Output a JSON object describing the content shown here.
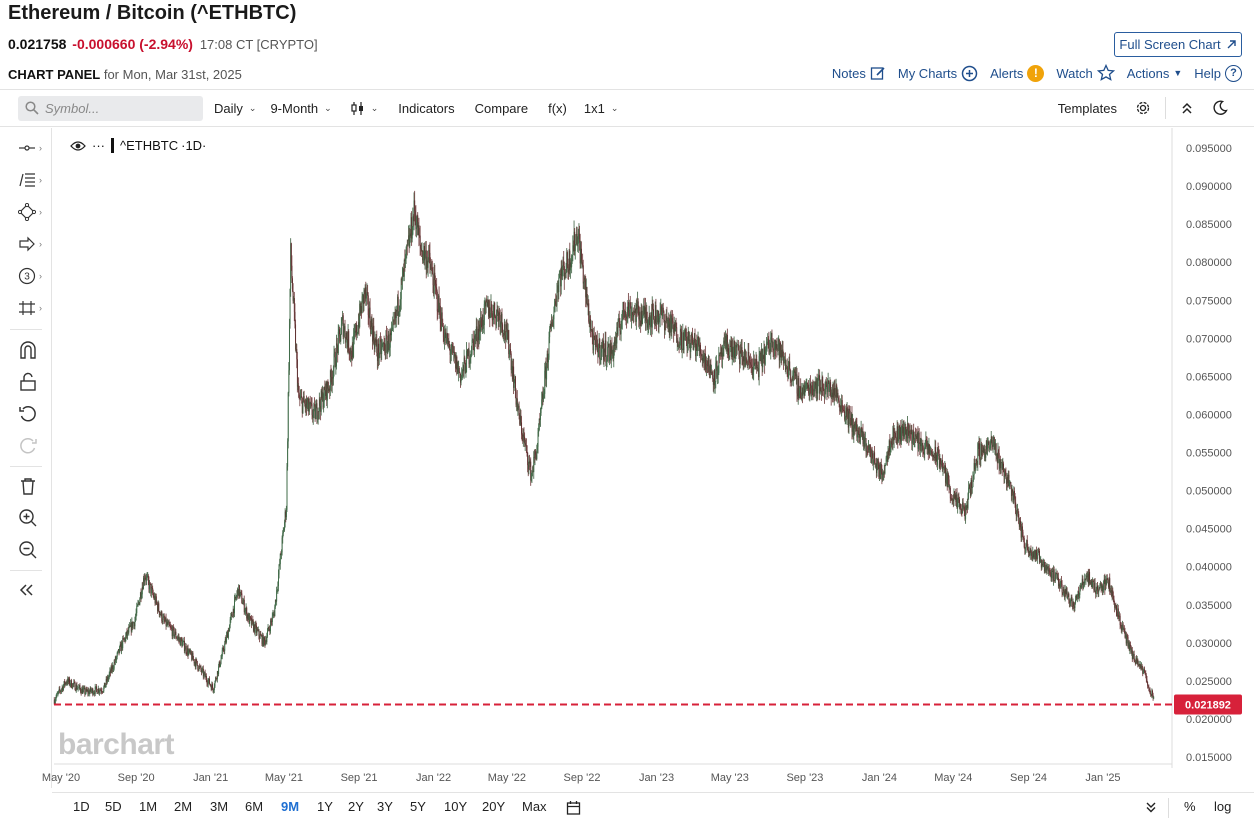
{
  "header": {
    "title": "Ethereum / Bitcoin (^ETHBTC)",
    "last": "0.021758",
    "change": "-0.000660 (-2.94%)",
    "meta": "17:08 CT [CRYPTO]",
    "fullscreen_label": "Full Screen Chart",
    "panel_title": "CHART PANEL",
    "panel_date": "for Mon, Mar 31st, 2025"
  },
  "links": {
    "notes": "Notes",
    "mycharts": "My Charts",
    "alerts": "Alerts",
    "watch": "Watch",
    "actions": "Actions",
    "help": "Help"
  },
  "toolbar": {
    "symbol_placeholder": "Symbol...",
    "interval": "Daily",
    "period": "9-Month",
    "indicators": "Indicators",
    "compare": "Compare",
    "fx": "f(x)",
    "layout": "1x1",
    "templates": "Templates"
  },
  "legend": {
    "symbol": "^ETHBTC",
    "interval": "·1D·"
  },
  "watermark": "barchart",
  "price_tag": "0.021892",
  "ranges": [
    "1D",
    "5D",
    "1M",
    "2M",
    "3M",
    "6M",
    "9M",
    "1Y",
    "2Y",
    "3Y",
    "5Y",
    "10Y",
    "20Y",
    "Max"
  ],
  "active_range": "9M",
  "bottom_right": {
    "percent": "%",
    "log": "log"
  },
  "colors": {
    "accent": "#1f4e8c",
    "down": "#c8102e",
    "price_line": "#d7213a",
    "candle": "#333333"
  },
  "chart_data": {
    "type": "line",
    "symbol": "^ETHBTC",
    "interval": "1D",
    "ylim": [
      0.0145,
      0.097
    ],
    "yticks": [
      "0.095000",
      "0.090000",
      "0.085000",
      "0.080000",
      "0.075000",
      "0.070000",
      "0.065000",
      "0.060000",
      "0.055000",
      "0.050000",
      "0.045000",
      "0.040000",
      "0.035000",
      "0.030000",
      "0.025000",
      "0.020000",
      "0.015000"
    ],
    "xticks": [
      "May '20",
      "Sep '20",
      "Jan '21",
      "May '21",
      "Sep '21",
      "Jan '22",
      "May '22",
      "Sep '22",
      "Jan '23",
      "May '23",
      "Sep '23",
      "Jan '24",
      "May '24",
      "Sep '24",
      "Jan '25"
    ],
    "x": [
      "2020-04-20",
      "2020-05-10",
      "2020-06-10",
      "2020-07-10",
      "2020-08-10",
      "2020-08-30",
      "2020-09-15",
      "2020-10-15",
      "2020-11-15",
      "2020-12-15",
      "2021-01-05",
      "2021-01-25",
      "2021-02-15",
      "2021-03-05",
      "2021-03-30",
      "2021-04-15",
      "2021-05-05",
      "2021-05-12",
      "2021-05-25",
      "2021-06-20",
      "2021-07-15",
      "2021-08-05",
      "2021-08-20",
      "2021-09-10",
      "2021-10-01",
      "2021-10-25",
      "2021-11-10",
      "2021-12-01",
      "2021-12-10",
      "2021-12-25",
      "2022-01-20",
      "2022-02-15",
      "2022-03-05",
      "2022-03-30",
      "2022-04-20",
      "2022-05-05",
      "2022-05-20",
      "2022-06-10",
      "2022-06-20",
      "2022-07-10",
      "2022-07-25",
      "2022-08-10",
      "2022-08-25",
      "2022-09-05",
      "2022-09-20",
      "2022-10-20",
      "2022-11-10",
      "2022-12-10",
      "2023-01-10",
      "2023-02-10",
      "2023-03-10",
      "2023-04-05",
      "2023-04-25",
      "2023-05-15",
      "2023-06-15",
      "2023-07-10",
      "2023-08-05",
      "2023-08-25",
      "2023-09-20",
      "2023-10-20",
      "2023-11-15",
      "2023-12-10",
      "2024-01-05",
      "2024-01-20",
      "2024-02-15",
      "2024-03-10",
      "2024-04-10",
      "2024-04-30",
      "2024-05-20",
      "2024-06-10",
      "2024-07-05",
      "2024-08-05",
      "2024-08-25",
      "2024-09-20",
      "2024-10-15",
      "2024-11-15",
      "2024-12-05",
      "2024-12-20",
      "2025-01-10",
      "2025-02-01",
      "2025-02-20",
      "2025-03-10",
      "2025-03-20",
      "2025-03-31"
    ],
    "values": [
      0.0225,
      0.025,
      0.0235,
      0.024,
      0.03,
      0.033,
      0.039,
      0.033,
      0.03,
      0.0265,
      0.024,
      0.03,
      0.037,
      0.033,
      0.03,
      0.034,
      0.048,
      0.081,
      0.062,
      0.06,
      0.064,
      0.072,
      0.068,
      0.076,
      0.068,
      0.07,
      0.077,
      0.087,
      0.082,
      0.08,
      0.07,
      0.065,
      0.069,
      0.074,
      0.073,
      0.069,
      0.06,
      0.052,
      0.056,
      0.07,
      0.078,
      0.08,
      0.084,
      0.077,
      0.069,
      0.068,
      0.074,
      0.073,
      0.073,
      0.07,
      0.069,
      0.065,
      0.069,
      0.068,
      0.066,
      0.07,
      0.066,
      0.063,
      0.064,
      0.063,
      0.059,
      0.056,
      0.052,
      0.057,
      0.058,
      0.056,
      0.054,
      0.049,
      0.047,
      0.055,
      0.056,
      0.05,
      0.043,
      0.041,
      0.0385,
      0.035,
      0.039,
      0.037,
      0.038,
      0.032,
      0.028,
      0.026,
      0.0235,
      0.0219
    ],
    "reference_line": 0.021892
  }
}
